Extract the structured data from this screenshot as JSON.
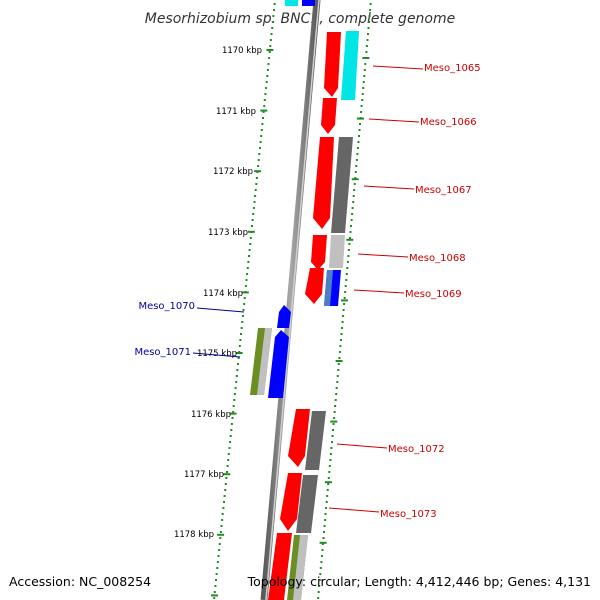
{
  "title": "Mesorhizobium sp. BNC1, complete genome",
  "footer": {
    "accession": "Accession: NC_008254",
    "topology": "Topology: circular; Length: 4,412,446 bp; Genes: 4,131"
  },
  "colors": {
    "backbone": "#8a8a8a",
    "ticks": "#228b22",
    "forward_label": "#cc0000",
    "reverse_label": "#000099",
    "gene_red": "#ff0000",
    "gene_blue": "#0000ff",
    "gene_cyan": "#00e5e5",
    "gene_gray": "#666666",
    "gene_lightgray": "#c0c0c0",
    "gene_olive": "#6b8e23"
  },
  "ticks": [
    {
      "label": "1170 kbp"
    },
    {
      "label": "1171 kbp"
    },
    {
      "label": "1172 kbp"
    },
    {
      "label": "1173 kbp"
    },
    {
      "label": "1174 kbp"
    },
    {
      "label": "1175 kbp"
    },
    {
      "label": "1176 kbp"
    },
    {
      "label": "1177 kbp"
    },
    {
      "label": "1178 kbp"
    }
  ],
  "forward_genes": [
    {
      "label": "Meso_1065"
    },
    {
      "label": "Meso_1066"
    },
    {
      "label": "Meso_1067"
    },
    {
      "label": "Meso_1068"
    },
    {
      "label": "Meso_1069"
    },
    {
      "label": "Meso_1072"
    },
    {
      "label": "Meso_1073"
    }
  ],
  "reverse_genes": [
    {
      "label": "Meso_1070"
    },
    {
      "label": "Meso_1071"
    }
  ]
}
